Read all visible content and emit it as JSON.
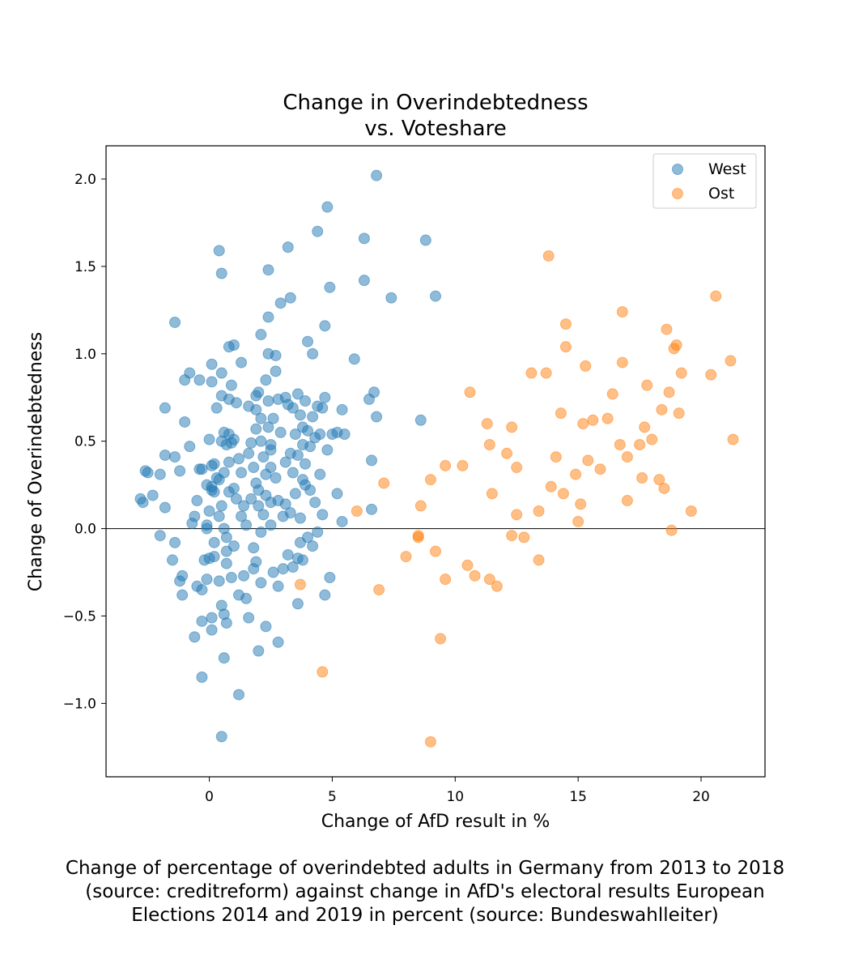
{
  "chart_data": {
    "type": "scatter",
    "title": [
      "Change in Overindebtedness",
      "vs. Voteshare"
    ],
    "xlabel": "Change of AfD result in %",
    "ylabel": "Change of Overindebtedness",
    "xlim": [
      -4.2,
      22.6
    ],
    "ylim": [
      -1.42,
      2.19
    ],
    "xticks": [
      0,
      5,
      10,
      15,
      20
    ],
    "xtick_labels": [
      "0",
      "5",
      "10",
      "15",
      "20"
    ],
    "yticks": [
      -1.0,
      -0.5,
      0.0,
      0.5,
      1.0,
      1.5,
      2.0
    ],
    "ytick_labels": [
      "−1.0",
      "−0.5",
      "0.0",
      "0.5",
      "1.0",
      "1.5",
      "2.0"
    ],
    "zero_line": 0,
    "grid": false,
    "legend_position": "top-right",
    "series": [
      {
        "name": "West",
        "color": "#1f77b4",
        "points": [
          [
            -2.8,
            0.17
          ],
          [
            -2.7,
            0.15
          ],
          [
            -2.6,
            0.33
          ],
          [
            -2.5,
            0.32
          ],
          [
            -2.3,
            0.19
          ],
          [
            -2.0,
            0.31
          ],
          [
            -2.0,
            -0.04
          ],
          [
            -1.8,
            0.69
          ],
          [
            -1.8,
            0.42
          ],
          [
            -1.8,
            0.12
          ],
          [
            -1.5,
            -0.18
          ],
          [
            -1.4,
            1.18
          ],
          [
            -1.4,
            -0.08
          ],
          [
            -1.4,
            0.41
          ],
          [
            -1.2,
            -0.3
          ],
          [
            -1.2,
            0.33
          ],
          [
            -1.1,
            -0.38
          ],
          [
            -1.1,
            -0.27
          ],
          [
            -1.0,
            0.85
          ],
          [
            -1.0,
            0.61
          ],
          [
            -0.8,
            0.89
          ],
          [
            -0.8,
            0.47
          ],
          [
            -0.7,
            0.03
          ],
          [
            -0.6,
            0.07
          ],
          [
            -0.6,
            -0.62
          ],
          [
            -0.5,
            -0.33
          ],
          [
            -0.5,
            0.16
          ],
          [
            -0.4,
            0.34
          ],
          [
            -0.4,
            0.85
          ],
          [
            -0.3,
            0.34
          ],
          [
            -0.3,
            -0.35
          ],
          [
            -0.3,
            -0.53
          ],
          [
            -0.3,
            -0.85
          ],
          [
            -0.2,
            -0.18
          ],
          [
            -0.1,
            0.0
          ],
          [
            -0.1,
            0.02
          ],
          [
            -0.1,
            0.25
          ],
          [
            -0.1,
            -0.29
          ],
          [
            0.0,
            -0.17
          ],
          [
            0.0,
            0.51
          ],
          [
            0.0,
            0.1
          ],
          [
            0.1,
            0.36
          ],
          [
            0.1,
            0.22
          ],
          [
            0.1,
            0.24
          ],
          [
            0.1,
            0.84
          ],
          [
            0.1,
            0.94
          ],
          [
            0.1,
            -0.51
          ],
          [
            0.1,
            -0.58
          ],
          [
            0.2,
            0.21
          ],
          [
            0.2,
            0.37
          ],
          [
            0.2,
            -0.16
          ],
          [
            0.2,
            -0.08
          ],
          [
            0.3,
            0.69
          ],
          [
            0.3,
            0.29
          ],
          [
            0.4,
            0.28
          ],
          [
            0.4,
            1.59
          ],
          [
            0.4,
            -0.3
          ],
          [
            0.4,
            0.07
          ],
          [
            0.5,
            0.76
          ],
          [
            0.5,
            0.89
          ],
          [
            0.5,
            0.5
          ],
          [
            0.5,
            0.13
          ],
          [
            0.5,
            1.46
          ],
          [
            0.5,
            -0.44
          ],
          [
            0.5,
            -1.19
          ],
          [
            0.6,
            0.32
          ],
          [
            0.6,
            0.55
          ],
          [
            0.6,
            -0.49
          ],
          [
            0.6,
            -0.74
          ],
          [
            0.6,
            0.0
          ],
          [
            0.7,
            0.48
          ],
          [
            0.7,
            -0.05
          ],
          [
            0.7,
            -0.13
          ],
          [
            0.7,
            -0.2
          ],
          [
            0.7,
            -0.54
          ],
          [
            0.8,
            1.04
          ],
          [
            0.8,
            0.74
          ],
          [
            0.8,
            0.38
          ],
          [
            0.8,
            0.21
          ],
          [
            0.8,
            0.54
          ],
          [
            0.9,
            0.49
          ],
          [
            0.9,
            0.82
          ],
          [
            0.9,
            -0.28
          ],
          [
            1.0,
            0.51
          ],
          [
            1.0,
            1.05
          ],
          [
            1.0,
            0.23
          ],
          [
            1.0,
            -0.1
          ],
          [
            1.1,
            0.72
          ],
          [
            1.1,
            0.17
          ],
          [
            1.2,
            0.4
          ],
          [
            1.2,
            -0.38
          ],
          [
            1.2,
            -0.95
          ],
          [
            1.3,
            0.32
          ],
          [
            1.3,
            0.07
          ],
          [
            1.3,
            0.95
          ],
          [
            1.4,
            0.13
          ],
          [
            1.4,
            -0.27
          ],
          [
            1.5,
            0.02
          ],
          [
            1.5,
            -0.4
          ],
          [
            1.6,
            0.43
          ],
          [
            1.6,
            0.7
          ],
          [
            1.6,
            -0.51
          ],
          [
            1.7,
            0.49
          ],
          [
            1.7,
            0.17
          ],
          [
            1.8,
            0.35
          ],
          [
            1.8,
            -0.23
          ],
          [
            1.8,
            -0.11
          ],
          [
            1.9,
            0.68
          ],
          [
            1.9,
            0.26
          ],
          [
            1.9,
            0.57
          ],
          [
            1.9,
            0.76
          ],
          [
            1.9,
            -0.19
          ],
          [
            2.0,
            0.78
          ],
          [
            2.0,
            0.22
          ],
          [
            2.0,
            0.13
          ],
          [
            2.0,
            -0.7
          ],
          [
            2.1,
            0.5
          ],
          [
            2.1,
            0.63
          ],
          [
            2.1,
            1.11
          ],
          [
            2.1,
            -0.02
          ],
          [
            2.1,
            -0.31
          ],
          [
            2.2,
            0.08
          ],
          [
            2.2,
            0.41
          ],
          [
            2.3,
            0.31
          ],
          [
            2.3,
            0.85
          ],
          [
            2.3,
            0.19
          ],
          [
            2.3,
            -0.56
          ],
          [
            2.4,
            1.48
          ],
          [
            2.4,
            0.58
          ],
          [
            2.4,
            0.73
          ],
          [
            2.4,
            1.0
          ],
          [
            2.4,
            1.21
          ],
          [
            2.5,
            0.48
          ],
          [
            2.5,
            0.45
          ],
          [
            2.5,
            0.35
          ],
          [
            2.5,
            0.15
          ],
          [
            2.5,
            0.02
          ],
          [
            2.6,
            0.63
          ],
          [
            2.6,
            -0.25
          ],
          [
            2.7,
            0.9
          ],
          [
            2.7,
            0.99
          ],
          [
            2.7,
            0.29
          ],
          [
            2.8,
            0.16
          ],
          [
            2.8,
            0.74
          ],
          [
            2.8,
            -0.33
          ],
          [
            2.8,
            -0.65
          ],
          [
            2.9,
            0.55
          ],
          [
            2.9,
            1.29
          ],
          [
            3.0,
            0.07
          ],
          [
            3.0,
            -0.23
          ],
          [
            3.1,
            0.75
          ],
          [
            3.1,
            0.38
          ],
          [
            3.1,
            0.14
          ],
          [
            3.2,
            1.61
          ],
          [
            3.2,
            0.71
          ],
          [
            3.2,
            -0.15
          ],
          [
            3.3,
            1.32
          ],
          [
            3.3,
            0.43
          ],
          [
            3.3,
            0.09
          ],
          [
            3.4,
            0.69
          ],
          [
            3.4,
            0.32
          ],
          [
            3.4,
            -0.22
          ],
          [
            3.5,
            0.54
          ],
          [
            3.5,
            0.2
          ],
          [
            3.6,
            0.77
          ],
          [
            3.6,
            0.42
          ],
          [
            3.6,
            -0.17
          ],
          [
            3.6,
            -0.43
          ],
          [
            3.7,
            0.65
          ],
          [
            3.7,
            0.06
          ],
          [
            3.7,
            -0.08
          ],
          [
            3.8,
            0.48
          ],
          [
            3.8,
            0.58
          ],
          [
            3.8,
            0.28
          ],
          [
            3.8,
            -0.18
          ],
          [
            3.9,
            0.73
          ],
          [
            3.9,
            0.37
          ],
          [
            3.9,
            0.25
          ],
          [
            4.0,
            0.56
          ],
          [
            4.0,
            1.07
          ],
          [
            4.0,
            -0.05
          ],
          [
            4.1,
            0.47
          ],
          [
            4.1,
            0.22
          ],
          [
            4.2,
            1.0
          ],
          [
            4.2,
            0.64
          ],
          [
            4.2,
            -0.1
          ],
          [
            4.3,
            0.52
          ],
          [
            4.3,
            0.15
          ],
          [
            4.4,
            1.7
          ],
          [
            4.4,
            0.7
          ],
          [
            4.4,
            -0.02
          ],
          [
            4.5,
            0.54
          ],
          [
            4.5,
            0.31
          ],
          [
            4.6,
            0.69
          ],
          [
            4.6,
            0.08
          ],
          [
            4.7,
            0.75
          ],
          [
            4.7,
            1.16
          ],
          [
            4.7,
            -0.38
          ],
          [
            4.8,
            1.84
          ],
          [
            4.8,
            0.45
          ],
          [
            4.9,
            1.38
          ],
          [
            4.9,
            -0.28
          ],
          [
            5.0,
            0.54
          ],
          [
            5.2,
            0.55
          ],
          [
            5.2,
            0.2
          ],
          [
            5.4,
            0.68
          ],
          [
            5.4,
            0.04
          ],
          [
            5.5,
            0.54
          ],
          [
            5.9,
            0.97
          ],
          [
            6.3,
            1.66
          ],
          [
            6.3,
            1.42
          ],
          [
            6.5,
            0.74
          ],
          [
            6.6,
            0.39
          ],
          [
            6.6,
            0.11
          ],
          [
            6.7,
            0.78
          ],
          [
            6.8,
            0.64
          ],
          [
            6.8,
            2.02
          ],
          [
            7.4,
            1.32
          ],
          [
            8.6,
            0.62
          ],
          [
            8.8,
            1.65
          ],
          [
            9.2,
            1.33
          ]
        ]
      },
      {
        "name": "Ost",
        "color": "#ff7f0e",
        "points": [
          [
            3.7,
            -0.32
          ],
          [
            4.6,
            -0.82
          ],
          [
            6.0,
            0.1
          ],
          [
            6.9,
            -0.35
          ],
          [
            7.1,
            0.26
          ],
          [
            8.0,
            -0.16
          ],
          [
            8.5,
            -0.05
          ],
          [
            8.5,
            -0.04
          ],
          [
            8.6,
            0.13
          ],
          [
            9.0,
            0.28
          ],
          [
            9.0,
            -1.22
          ],
          [
            9.2,
            -0.13
          ],
          [
            9.4,
            -0.63
          ],
          [
            9.6,
            -0.29
          ],
          [
            9.6,
            0.36
          ],
          [
            10.3,
            0.36
          ],
          [
            10.5,
            -0.21
          ],
          [
            10.6,
            0.78
          ],
          [
            10.8,
            -0.27
          ],
          [
            11.3,
            0.6
          ],
          [
            11.4,
            0.48
          ],
          [
            11.4,
            -0.29
          ],
          [
            11.5,
            0.2
          ],
          [
            11.7,
            -0.33
          ],
          [
            12.1,
            0.43
          ],
          [
            12.3,
            0.58
          ],
          [
            12.3,
            -0.04
          ],
          [
            12.5,
            0.35
          ],
          [
            12.5,
            0.08
          ],
          [
            12.8,
            -0.05
          ],
          [
            13.1,
            0.89
          ],
          [
            13.4,
            0.1
          ],
          [
            13.4,
            -0.18
          ],
          [
            13.7,
            0.89
          ],
          [
            13.8,
            1.56
          ],
          [
            13.9,
            0.24
          ],
          [
            14.1,
            0.41
          ],
          [
            14.3,
            0.66
          ],
          [
            14.4,
            0.2
          ],
          [
            14.5,
            1.17
          ],
          [
            14.5,
            1.04
          ],
          [
            14.9,
            0.31
          ],
          [
            15.0,
            0.04
          ],
          [
            15.1,
            0.14
          ],
          [
            15.2,
            0.6
          ],
          [
            15.3,
            0.93
          ],
          [
            15.4,
            0.39
          ],
          [
            15.6,
            0.62
          ],
          [
            15.9,
            0.34
          ],
          [
            16.2,
            0.63
          ],
          [
            16.4,
            0.77
          ],
          [
            16.7,
            0.48
          ],
          [
            16.8,
            1.24
          ],
          [
            16.8,
            0.95
          ],
          [
            17.0,
            0.41
          ],
          [
            17.0,
            0.16
          ],
          [
            17.5,
            0.48
          ],
          [
            17.6,
            0.29
          ],
          [
            17.7,
            0.58
          ],
          [
            17.8,
            0.82
          ],
          [
            18.0,
            0.51
          ],
          [
            18.3,
            0.28
          ],
          [
            18.4,
            0.68
          ],
          [
            18.5,
            0.23
          ],
          [
            18.6,
            1.14
          ],
          [
            18.7,
            0.78
          ],
          [
            18.8,
            -0.01
          ],
          [
            18.9,
            1.03
          ],
          [
            19.0,
            1.05
          ],
          [
            19.1,
            0.66
          ],
          [
            19.2,
            0.89
          ],
          [
            19.6,
            0.1
          ],
          [
            20.4,
            0.88
          ],
          [
            20.6,
            1.33
          ],
          [
            21.2,
            0.96
          ],
          [
            21.3,
            0.51
          ]
        ]
      }
    ]
  },
  "caption": [
    "Change of percentage of overindebted adults in Germany from 2013 to 2018",
    "(source: creditreform) against change in AfD's electoral results European",
    "Elections 2014 and 2019 in percent (source: Bundeswahlleiter)"
  ]
}
